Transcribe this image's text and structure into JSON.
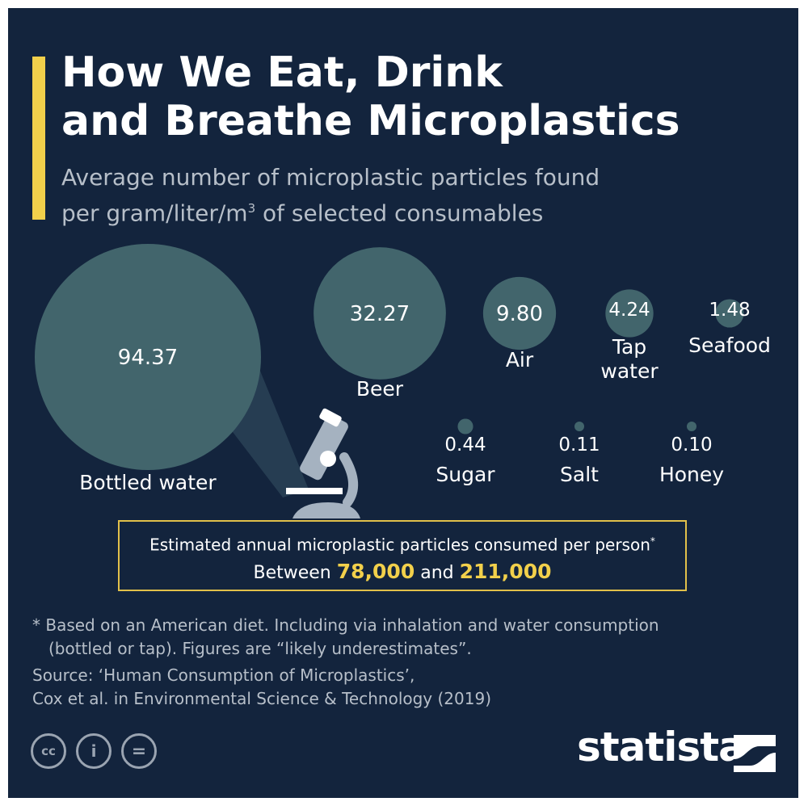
{
  "header": {
    "title_line1": "How We Eat, Drink",
    "title_line2": "and Breathe Microplastics",
    "subtitle_line1": "Average number of microplastic particles found",
    "subtitle_line2_pre": "per gram/liter/m",
    "subtitle_line2_sup": "3",
    "subtitle_line2_post": " of selected consumables"
  },
  "chart_data": {
    "type": "bubble",
    "title": "How We Eat, Drink and Breathe Microplastics",
    "subtitle": "Average number of microplastic particles found per gram/liter/m³ of selected consumables",
    "categories": [
      "Bottled water",
      "Beer",
      "Air",
      "Tap water",
      "Seafood",
      "Sugar",
      "Salt",
      "Honey"
    ],
    "values": [
      94.37,
      32.27,
      9.8,
      4.24,
      1.48,
      0.44,
      0.11,
      0.1
    ],
    "value_labels": [
      "94.37",
      "32.27",
      "9.80",
      "4.24",
      "1.48",
      "0.44",
      "0.11",
      "0.10"
    ],
    "label_lines": [
      [
        "Bottled water"
      ],
      [
        "Beer"
      ],
      [
        "Air"
      ],
      [
        "Tap",
        "water"
      ],
      [
        "Seafood"
      ],
      [
        "Sugar"
      ],
      [
        "Salt"
      ],
      [
        "Honey"
      ]
    ],
    "bubble_color": "#42656c"
  },
  "callout": {
    "line1": "Estimated annual microplastic particles consumed per person",
    "line1_mark": "*",
    "line2_pre": "Between ",
    "low": "78,000",
    "line2_mid": " and ",
    "high": "211,000"
  },
  "footnote": {
    "line1": "* Based on an American diet. Including via inhalation and water consumption",
    "line2": "(bottled or tap). Figures are “likely underestimates”."
  },
  "source": {
    "line1": "Source: ‘Human Consumption of Microplastics’,",
    "line2": "Cox et al. in Environmental Science & Technology (2019)"
  },
  "license_icons": [
    {
      "icon": "cc-icon",
      "glyph": "cc"
    },
    {
      "icon": "attribution-icon",
      "glyph": "i"
    },
    {
      "icon": "noderivs-icon",
      "glyph": "="
    }
  ],
  "brand": {
    "name": "statista"
  },
  "colors": {
    "background": "#13243d",
    "accent": "#f2d04b",
    "bubble": "#42656c",
    "muted_text": "#b7bfc9"
  }
}
